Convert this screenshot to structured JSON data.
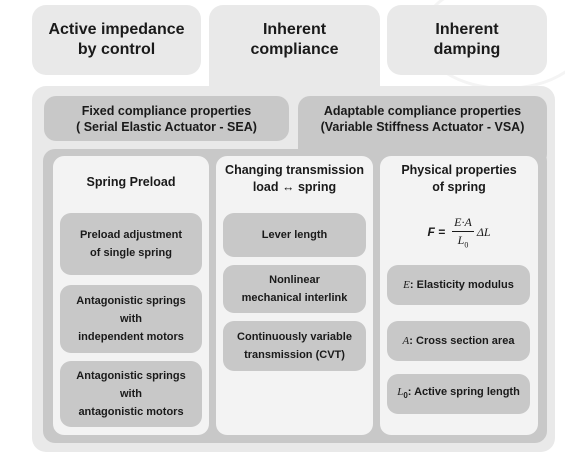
{
  "top_boxes": [
    {
      "line1": "Active impedance",
      "line2": "by control"
    },
    {
      "line1": "Inherent",
      "line2": "compliance"
    },
    {
      "line1": "Inherent",
      "line2": "damping"
    }
  ],
  "compliance_types": [
    {
      "line1": "Fixed compliance properties",
      "line2": "( Serial Elastic Actuator - SEA)"
    },
    {
      "line1": "Adaptable compliance properties",
      "line2": "(Variable Stiffness Actuator - VSA)"
    }
  ],
  "columns": [
    {
      "title_line1": "Spring Preload",
      "items": [
        {
          "lines": [
            "Preload adjustment",
            "of single spring"
          ]
        },
        {
          "lines": [
            "Antagonistic springs",
            "with",
            "independent motors"
          ]
        },
        {
          "lines": [
            "Antagonistic springs",
            "with",
            "antagonistic motors"
          ]
        }
      ]
    },
    {
      "title_line1": "Changing transmission",
      "title_line2": "load ↔ spring",
      "items": [
        {
          "lines": [
            "Lever length"
          ]
        },
        {
          "lines": [
            "Nonlinear",
            "mechanical interlink"
          ]
        },
        {
          "lines": [
            "Continuously variable",
            "transmission (CVT)"
          ]
        }
      ]
    },
    {
      "title_line1": "Physical properties",
      "title_line2": "of spring",
      "formula": {
        "lhs": "F =",
        "numerator": "E·A",
        "denominator": "L",
        "denominator_sub": "0",
        "rhs": "ΔL"
      },
      "items": [
        {
          "symbol": "E",
          "text": ": Elasticity modulus"
        },
        {
          "symbol": "A",
          "text": ": Cross section area"
        },
        {
          "symbol": "L",
          "symbol_sub": "0",
          "text": ": Active spring length"
        }
      ]
    }
  ]
}
